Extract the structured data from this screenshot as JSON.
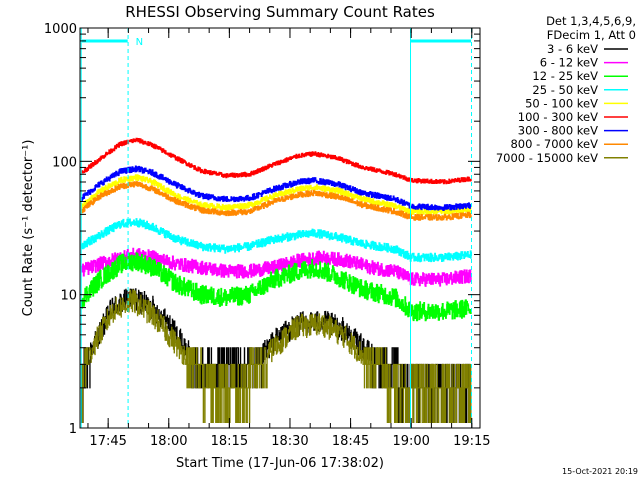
{
  "chart_data": {
    "type": "line",
    "title": "RHESSI Observing Summary Count Rates",
    "xlabel": "Start Time (17-Jun-06 17:38:02)",
    "ylabel": "Count Rate (s⁻¹ detector⁻¹)",
    "yscale": "log",
    "ylim": [
      1,
      1000
    ],
    "xlim_minutes": [
      0,
      99
    ],
    "x_ticks": [
      {
        "label": "17:45",
        "t": 6.97
      },
      {
        "label": "18:00",
        "t": 21.97
      },
      {
        "label": "18:15",
        "t": 36.97
      },
      {
        "label": "18:30",
        "t": 51.97
      },
      {
        "label": "18:45",
        "t": 66.97
      },
      {
        "label": "19:00",
        "t": 81.97
      },
      {
        "label": "19:15",
        "t": 96.97
      }
    ],
    "y_ticks": [
      {
        "label": "1",
        "v": 1
      },
      {
        "label": "10",
        "v": 10
      },
      {
        "label": "100",
        "v": 100
      },
      {
        "label": "1000",
        "v": 1000
      }
    ],
    "legend": {
      "header1": "Det 1,3,4,5,6,9,",
      "header2": "FDecim 1, Att 0",
      "placement": "right"
    },
    "series": [
      {
        "name": "3 - 6 keV",
        "color": "#000000",
        "keys": [
          [
            0,
            2
          ],
          [
            3,
            4
          ],
          [
            8,
            8
          ],
          [
            13,
            9.5
          ],
          [
            18,
            8
          ],
          [
            22,
            6
          ],
          [
            26,
            4
          ],
          [
            30,
            2.7
          ],
          [
            36,
            2.5
          ],
          [
            42,
            2.7
          ],
          [
            48,
            4.5
          ],
          [
            54,
            6
          ],
          [
            60,
            6.3
          ],
          [
            65,
            5.5
          ],
          [
            70,
            4
          ],
          [
            76,
            2.8
          ],
          [
            82,
            2.2
          ],
          [
            90,
            2.2
          ],
          [
            98,
            2.2
          ]
        ]
      },
      {
        "name": "6 - 12 keV",
        "color": "#ff00ff",
        "keys": [
          [
            0,
            15
          ],
          [
            5,
            17
          ],
          [
            10,
            19
          ],
          [
            14,
            20
          ],
          [
            18,
            19
          ],
          [
            24,
            17
          ],
          [
            30,
            16
          ],
          [
            36,
            15
          ],
          [
            42,
            15
          ],
          [
            48,
            16
          ],
          [
            54,
            18
          ],
          [
            60,
            19
          ],
          [
            66,
            18
          ],
          [
            72,
            16
          ],
          [
            78,
            15
          ],
          [
            82,
            13
          ],
          [
            90,
            13
          ],
          [
            98,
            14
          ]
        ]
      },
      {
        "name": "12 - 25 keV",
        "color": "#00ff00",
        "keys": [
          [
            0,
            9
          ],
          [
            5,
            13
          ],
          [
            10,
            17
          ],
          [
            14,
            18
          ],
          [
            18,
            16
          ],
          [
            24,
            12
          ],
          [
            30,
            10
          ],
          [
            36,
            9.5
          ],
          [
            42,
            10
          ],
          [
            48,
            13
          ],
          [
            54,
            15
          ],
          [
            58,
            16
          ],
          [
            63,
            14
          ],
          [
            70,
            11
          ],
          [
            78,
            9.5
          ],
          [
            82,
            7.5
          ],
          [
            90,
            7.5
          ],
          [
            98,
            8
          ]
        ]
      },
      {
        "name": "25 - 50 keV",
        "color": "#00ffff",
        "keys": [
          [
            0,
            23
          ],
          [
            5,
            28
          ],
          [
            10,
            34
          ],
          [
            14,
            35
          ],
          [
            18,
            32
          ],
          [
            24,
            26
          ],
          [
            30,
            23
          ],
          [
            36,
            22
          ],
          [
            42,
            23
          ],
          [
            48,
            26
          ],
          [
            54,
            28
          ],
          [
            58,
            29
          ],
          [
            64,
            27
          ],
          [
            70,
            24
          ],
          [
            78,
            22
          ],
          [
            82,
            19
          ],
          [
            90,
            19
          ],
          [
            98,
            20
          ]
        ]
      },
      {
        "name": "50 - 100 keV",
        "color": "#ffff00",
        "keys": [
          [
            0,
            45
          ],
          [
            5,
            60
          ],
          [
            10,
            72
          ],
          [
            14,
            76
          ],
          [
            18,
            70
          ],
          [
            24,
            55
          ],
          [
            30,
            47
          ],
          [
            36,
            45
          ],
          [
            42,
            47
          ],
          [
            48,
            55
          ],
          [
            54,
            62
          ],
          [
            58,
            64
          ],
          [
            64,
            60
          ],
          [
            70,
            52
          ],
          [
            78,
            46
          ],
          [
            82,
            42
          ],
          [
            90,
            42
          ],
          [
            98,
            44
          ]
        ]
      },
      {
        "name": "100 - 300 keV",
        "color": "#ff0000",
        "keys": [
          [
            0,
            80
          ],
          [
            5,
            105
          ],
          [
            10,
            135
          ],
          [
            14,
            145
          ],
          [
            18,
            132
          ],
          [
            24,
            105
          ],
          [
            30,
            85
          ],
          [
            36,
            78
          ],
          [
            42,
            80
          ],
          [
            48,
            95
          ],
          [
            54,
            110
          ],
          [
            58,
            114
          ],
          [
            64,
            105
          ],
          [
            70,
            90
          ],
          [
            78,
            80
          ],
          [
            82,
            72
          ],
          [
            90,
            70
          ],
          [
            98,
            75
          ]
        ]
      },
      {
        "name": "300 - 800 keV",
        "color": "#0000ff",
        "keys": [
          [
            0,
            52
          ],
          [
            5,
            68
          ],
          [
            10,
            84
          ],
          [
            14,
            88
          ],
          [
            18,
            82
          ],
          [
            24,
            66
          ],
          [
            30,
            55
          ],
          [
            36,
            52
          ],
          [
            42,
            53
          ],
          [
            48,
            62
          ],
          [
            54,
            70
          ],
          [
            58,
            72
          ],
          [
            64,
            67
          ],
          [
            70,
            58
          ],
          [
            78,
            52
          ],
          [
            82,
            46
          ],
          [
            90,
            45
          ],
          [
            98,
            47
          ]
        ]
      },
      {
        "name": "800 - 7000 keV",
        "color": "#ff8800",
        "keys": [
          [
            0,
            42
          ],
          [
            5,
            55
          ],
          [
            10,
            65
          ],
          [
            14,
            68
          ],
          [
            18,
            62
          ],
          [
            24,
            50
          ],
          [
            30,
            43
          ],
          [
            36,
            41
          ],
          [
            42,
            42
          ],
          [
            48,
            50
          ],
          [
            54,
            56
          ],
          [
            58,
            58
          ],
          [
            64,
            54
          ],
          [
            70,
            47
          ],
          [
            78,
            42
          ],
          [
            82,
            38
          ],
          [
            90,
            38
          ],
          [
            98,
            40
          ]
        ]
      },
      {
        "name": "7000 - 15000 keV",
        "color": "#808000",
        "keys": [
          [
            0,
            2
          ],
          [
            3,
            4
          ],
          [
            8,
            7.5
          ],
          [
            13,
            9
          ],
          [
            18,
            7
          ],
          [
            22,
            5
          ],
          [
            26,
            3.5
          ],
          [
            30,
            2.5
          ],
          [
            36,
            2.3
          ],
          [
            42,
            2.5
          ],
          [
            48,
            4
          ],
          [
            54,
            5.8
          ],
          [
            60,
            6
          ],
          [
            65,
            5
          ],
          [
            70,
            3.5
          ],
          [
            76,
            2.5
          ],
          [
            82,
            2
          ],
          [
            90,
            2
          ],
          [
            98,
            2
          ]
        ]
      }
    ],
    "flag_bars": {
      "color": "#00ffff",
      "segments": [
        [
          0.5,
          11.8
        ],
        [
          81.8,
          96.8
        ]
      ],
      "label": "N",
      "level": 800
    },
    "vertical_lines": [
      {
        "t": 0.3,
        "style": "solid",
        "color": "#00ffff"
      },
      {
        "t": 11.9,
        "style": "dashed",
        "color": "#00ffff"
      },
      {
        "t": 81.8,
        "style": "solid",
        "color": "#00ffff"
      },
      {
        "t": 96.9,
        "style": "dashed",
        "color": "#00ffff"
      }
    ],
    "footer_date": "15-Oct-2021 20:19"
  }
}
